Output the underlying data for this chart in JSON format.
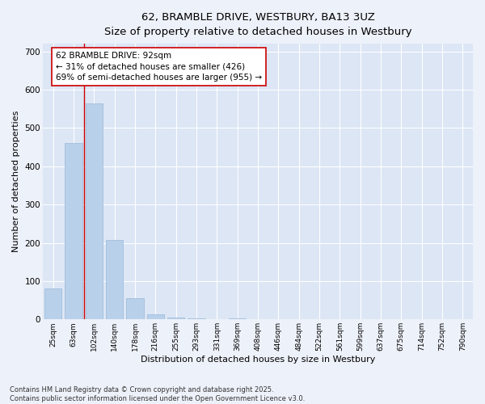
{
  "title_line1": "62, BRAMBLE DRIVE, WESTBURY, BA13 3UZ",
  "title_line2": "Size of property relative to detached houses in Westbury",
  "xlabel": "Distribution of detached houses by size in Westbury",
  "ylabel": "Number of detached properties",
  "categories": [
    "25sqm",
    "63sqm",
    "102sqm",
    "140sqm",
    "178sqm",
    "216sqm",
    "255sqm",
    "293sqm",
    "331sqm",
    "369sqm",
    "408sqm",
    "446sqm",
    "484sqm",
    "522sqm",
    "561sqm",
    "599sqm",
    "637sqm",
    "675sqm",
    "714sqm",
    "752sqm",
    "790sqm"
  ],
  "values": [
    80,
    460,
    565,
    208,
    55,
    14,
    5,
    3,
    0,
    3,
    0,
    0,
    0,
    0,
    0,
    0,
    0,
    0,
    0,
    0,
    0
  ],
  "bar_color": "#b8d0ea",
  "bar_edge_color": "#9ab8d8",
  "vline_color": "#cc0000",
  "vline_x": 1.5,
  "annotation_text": "62 BRAMBLE DRIVE: 92sqm\n← 31% of detached houses are smaller (426)\n69% of semi-detached houses are larger (955) →",
  "annotation_box_color": "#ffffff",
  "annotation_box_edge": "#cc0000",
  "ylim": [
    0,
    720
  ],
  "yticks": [
    0,
    100,
    200,
    300,
    400,
    500,
    600,
    700
  ],
  "background_color": "#edf1f9",
  "plot_bg_color": "#dce6f5",
  "grid_color": "#ffffff",
  "footnote": "Contains HM Land Registry data © Crown copyright and database right 2025.\nContains public sector information licensed under the Open Government Licence v3.0."
}
